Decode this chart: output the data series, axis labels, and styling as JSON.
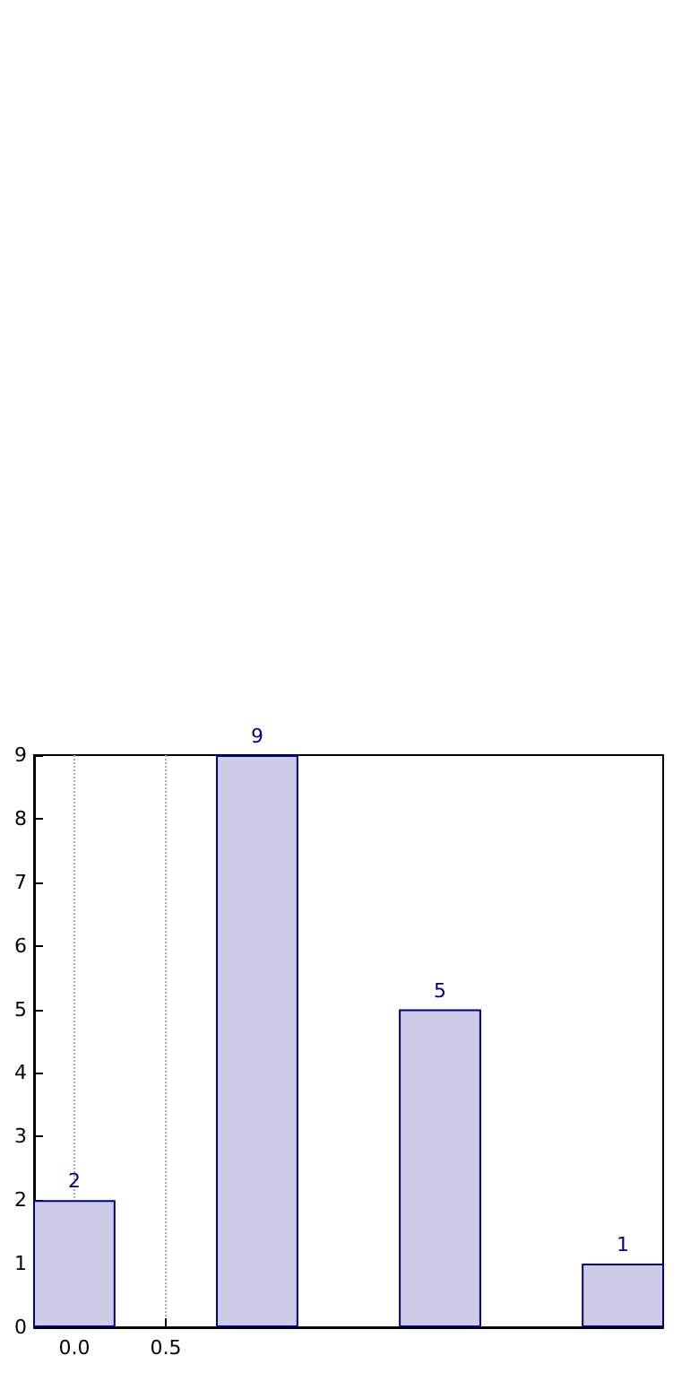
{
  "chart_data": {
    "type": "bar",
    "x": [
      0,
      1,
      2,
      3
    ],
    "values": [
      2,
      9,
      5,
      1
    ],
    "color": "#cccce6",
    "data_labels": true,
    "xlim": [
      -0.22,
      3.22
    ],
    "xticks": [
      {
        "value": 0,
        "label": "0.0"
      },
      {
        "value": 0.5,
        "label": "0.5"
      }
    ],
    "ylim": [
      0,
      9
    ],
    "yticks": [
      0,
      1,
      2,
      3,
      4,
      5,
      6,
      7,
      8,
      9
    ],
    "grid": "x"
  }
}
